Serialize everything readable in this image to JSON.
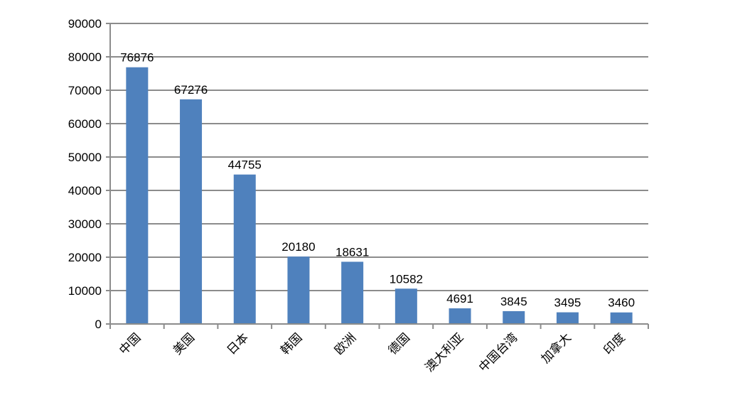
{
  "chart_data": {
    "type": "bar",
    "title": "",
    "xlabel": "",
    "ylabel": "",
    "categories": [
      "中国",
      "美国",
      "日本",
      "韩国",
      "欧洲",
      "德国",
      "澳大利亚",
      "中国台湾",
      "加拿大",
      "印度"
    ],
    "values": [
      76876,
      67276,
      44755,
      20180,
      18631,
      10582,
      4691,
      3845,
      3495,
      3460
    ],
    "data_labels": [
      "76876",
      "67276",
      "44755",
      "20180",
      "18631",
      "10582",
      "4691",
      "3845",
      "3495",
      "3460"
    ],
    "ylim": [
      0,
      90000
    ],
    "yticks": [
      0,
      10000,
      20000,
      30000,
      40000,
      50000,
      60000,
      70000,
      80000,
      90000
    ],
    "ytick_labels": [
      "0",
      "10000",
      "20000",
      "30000",
      "40000",
      "50000",
      "60000",
      "70000",
      "80000",
      "90000"
    ],
    "grid": true,
    "legend": "none",
    "colors": {
      "bar": "#4f81bd",
      "grid": "#8c8c8c",
      "axis": "#8c8c8c"
    }
  }
}
